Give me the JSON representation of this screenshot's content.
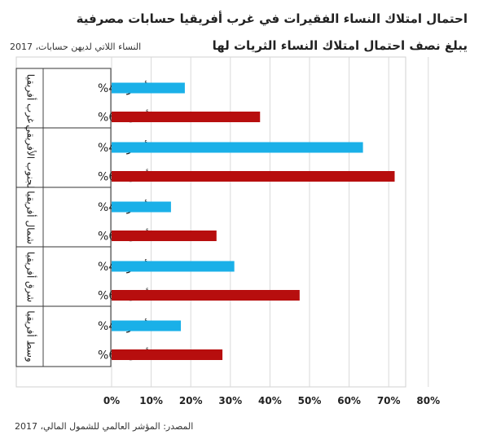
{
  "title": "احتمال امتلاك النساء الفقيرات في غرب أفريقيا حسابات مصرفية",
  "subtitle": "يبلغ نصف احتمال امتلاك النساء الثريات لها",
  "ylabel": "النساء اللاتي لديهن حسابات، 2017",
  "source": "المصدر: المؤشر العالمي للشمول المالي، 2017",
  "colors": {
    "poorest": "#1ab0e8",
    "richest": "#b70e0e"
  },
  "chart_data": {
    "type": "bar",
    "orientation": "horizontal",
    "title": "احتمال امتلاك النساء الفقيرات في غرب أفريقيا حسابات مصرفية",
    "subtitle": "يبلغ نصف احتمال امتلاك النساء الثريات لها",
    "ylabel": "النساء اللاتي لديهن حسابات، 2017",
    "xlim": [
      0,
      80
    ],
    "x_ticks": [
      "0%",
      "10%",
      "20%",
      "30%",
      "40%",
      "50%",
      "60%",
      "70%",
      "80%"
    ],
    "grid": true,
    "groups": [
      {
        "name": "غرب أفريقيا",
        "bars": [
          {
            "label": "أفقر 40%",
            "series": "poorest",
            "value": 18.5
          },
          {
            "label": "أغنى 60%",
            "series": "richest",
            "value": 37.5
          }
        ]
      },
      {
        "name": "الجنوب الأفريقي",
        "bars": [
          {
            "label": "أفقر 40%",
            "series": "poorest",
            "value": 63.5
          },
          {
            "label": "أغنى 60%",
            "series": "richest",
            "value": 71.5
          }
        ]
      },
      {
        "name": "شمال أفريقيا",
        "bars": [
          {
            "label": "أفقر 40%",
            "series": "poorest",
            "value": 15
          },
          {
            "label": "أغنى 60%",
            "series": "richest",
            "value": 26.5
          }
        ]
      },
      {
        "name": "شرق أفريقيا",
        "bars": [
          {
            "label": "أفقر 40%",
            "series": "poorest",
            "value": 31
          },
          {
            "label": "أغنى 60%",
            "series": "richest",
            "value": 47.5
          }
        ]
      },
      {
        "name": "وسط أفريقيا",
        "bars": [
          {
            "label": "أفقر 40%",
            "series": "poorest",
            "value": 17.5
          },
          {
            "label": "أغنى 60%",
            "series": "richest",
            "value": 28
          }
        ]
      }
    ]
  }
}
